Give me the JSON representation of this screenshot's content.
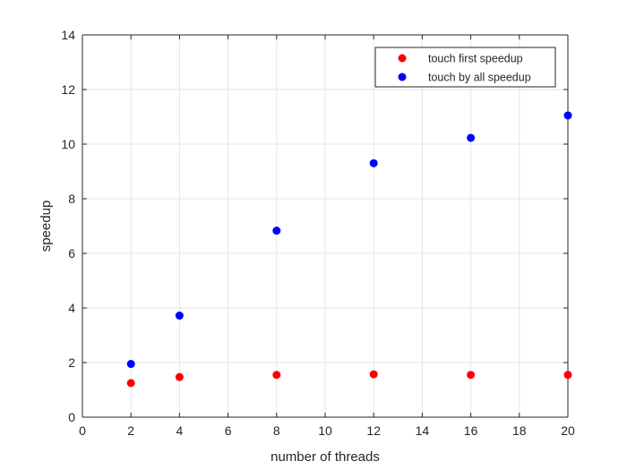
{
  "chart_data": {
    "type": "scatter",
    "xlabel": "number of threads",
    "ylabel": "speedup",
    "xlim": [
      0,
      20
    ],
    "ylim": [
      0,
      14
    ],
    "xticks": [
      0,
      2,
      4,
      6,
      8,
      10,
      12,
      14,
      16,
      18,
      20
    ],
    "yticks": [
      0,
      2,
      4,
      6,
      8,
      10,
      12,
      14
    ],
    "grid": true,
    "legend_position": "top-right",
    "series": [
      {
        "name": "touch first speedup",
        "color": "#ff0000",
        "x": [
          2,
          4,
          8,
          12,
          16,
          20
        ],
        "y": [
          1.25,
          1.47,
          1.55,
          1.57,
          1.55,
          1.55
        ]
      },
      {
        "name": "touch by all speedup",
        "color": "#0000ff",
        "x": [
          2,
          4,
          8,
          12,
          16,
          20
        ],
        "y": [
          1.95,
          3.72,
          6.83,
          9.3,
          10.23,
          11.05
        ]
      }
    ]
  }
}
